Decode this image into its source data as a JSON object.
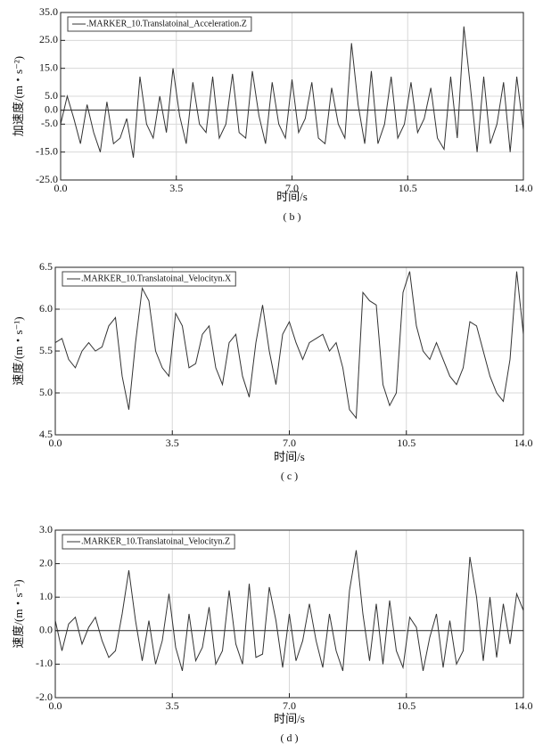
{
  "chart_data": [
    {
      "type": "line",
      "xlabel": "时间/s",
      "ylabel": "加速度/(m・s⁻²)",
      "caption": "( b )",
      "legend": "upper left",
      "grid": true,
      "xlim": [
        0,
        14
      ],
      "ylim": [
        -25,
        35
      ],
      "xticks": [
        {
          "value": 0,
          "label": "0.0"
        },
        {
          "value": 3.5,
          "label": "3.5"
        },
        {
          "value": 7,
          "label": "7.0"
        },
        {
          "value": 10.5,
          "label": "10.5"
        },
        {
          "value": 14,
          "label": "14.0"
        }
      ],
      "yticks": [
        {
          "value": -25,
          "label": "-25.0"
        },
        {
          "value": -15,
          "label": "-15.0"
        },
        {
          "value": -5,
          "label": "-5.0"
        },
        {
          "value": 0,
          "label": "0.0"
        },
        {
          "value": 5,
          "label": "5.0"
        },
        {
          "value": 15,
          "label": "15.0"
        },
        {
          "value": 25,
          "label": "25.0"
        },
        {
          "value": 35,
          "label": "35.0"
        }
      ],
      "x": [
        0,
        0.2,
        0.4,
        0.6,
        0.8,
        1,
        1.2,
        1.4,
        1.6,
        1.8,
        2,
        2.2,
        2.4,
        2.6,
        2.8,
        3,
        3.2,
        3.4,
        3.6,
        3.8,
        4,
        4.2,
        4.4,
        4.6,
        4.8,
        5,
        5.2,
        5.4,
        5.6,
        5.8,
        6,
        6.2,
        6.4,
        6.6,
        6.8,
        7,
        7.2,
        7.4,
        7.6,
        7.8,
        8,
        8.2,
        8.4,
        8.6,
        8.8,
        9,
        9.2,
        9.4,
        9.6,
        9.8,
        10,
        10.2,
        10.4,
        10.6,
        10.8,
        11,
        11.2,
        11.4,
        11.6,
        11.8,
        12,
        12.2,
        12.4,
        12.6,
        12.8,
        13,
        13.2,
        13.4,
        13.6,
        13.8,
        14
      ],
      "series": [
        {
          "name": ".MARKER_10.Translatoinal_Acceleration.Z",
          "color": "#333333",
          "values": [
            -5,
            5,
            -3,
            -12,
            2,
            -8,
            -15,
            3,
            -12,
            -10,
            -3,
            -17,
            12,
            -5,
            -10,
            5,
            -8,
            15,
            -2,
            -12,
            10,
            -5,
            -8,
            12,
            -10,
            -5,
            13,
            -8,
            -10,
            14,
            -2,
            -12,
            10,
            -5,
            -10,
            11,
            -8,
            -3,
            10,
            -10,
            -12,
            8,
            -5,
            -10,
            24,
            2,
            -12,
            14,
            -12,
            -5,
            12,
            -10,
            -5,
            10,
            -8,
            -3,
            8,
            -10,
            -14,
            12,
            -10,
            30,
            8,
            -15,
            12,
            -12,
            -5,
            10,
            -15,
            12,
            -7
          ]
        }
      ]
    },
    {
      "type": "line",
      "xlabel": "时间/s",
      "ylabel": "速度/(m・s⁻¹)",
      "caption": "( c )",
      "legend": "upper left",
      "grid": true,
      "xlim": [
        0,
        14
      ],
      "ylim": [
        4.5,
        6.5
      ],
      "xticks": [
        {
          "value": 0,
          "label": "0.0"
        },
        {
          "value": 3.5,
          "label": "3.5"
        },
        {
          "value": 7,
          "label": "7.0"
        },
        {
          "value": 10.5,
          "label": "10.5"
        },
        {
          "value": 14,
          "label": "14.0"
        }
      ],
      "yticks": [
        4.5,
        {
          "value": 5,
          "label": "5.0"
        },
        5.5,
        {
          "value": 6,
          "label": "6.0"
        },
        6.5
      ],
      "x": [
        0,
        0.2,
        0.4,
        0.6,
        0.8,
        1,
        1.2,
        1.4,
        1.6,
        1.8,
        2,
        2.2,
        2.4,
        2.6,
        2.8,
        3,
        3.2,
        3.4,
        3.6,
        3.8,
        4,
        4.2,
        4.4,
        4.6,
        4.8,
        5,
        5.2,
        5.4,
        5.6,
        5.8,
        6,
        6.2,
        6.4,
        6.6,
        6.8,
        7,
        7.2,
        7.4,
        7.6,
        7.8,
        8,
        8.2,
        8.4,
        8.6,
        8.8,
        9,
        9.2,
        9.4,
        9.6,
        9.8,
        10,
        10.2,
        10.4,
        10.6,
        10.8,
        11,
        11.2,
        11.4,
        11.6,
        11.8,
        12,
        12.2,
        12.4,
        12.6,
        12.8,
        13,
        13.2,
        13.4,
        13.6,
        13.8,
        14
      ],
      "series": [
        {
          "name": ".MARKER_10.Translatoinal_Velocityn.X",
          "color": "#333333",
          "values": [
            5.6,
            5.65,
            5.4,
            5.3,
            5.5,
            5.6,
            5.5,
            5.55,
            5.8,
            5.9,
            5.2,
            4.8,
            5.6,
            6.25,
            6.1,
            5.5,
            5.3,
            5.2,
            5.95,
            5.8,
            5.3,
            5.35,
            5.7,
            5.8,
            5.3,
            5.1,
            5.6,
            5.7,
            5.2,
            4.95,
            5.6,
            6.05,
            5.5,
            5.1,
            5.7,
            5.85,
            5.6,
            5.4,
            5.6,
            5.65,
            5.7,
            5.5,
            5.6,
            5.3,
            4.8,
            4.7,
            6.2,
            6.1,
            6.05,
            5.1,
            4.85,
            5.0,
            6.2,
            6.45,
            5.8,
            5.5,
            5.4,
            5.6,
            5.4,
            5.2,
            5.1,
            5.3,
            5.85,
            5.8,
            5.5,
            5.2,
            5.0,
            4.9,
            5.4,
            6.45,
            5.7
          ]
        }
      ]
    },
    {
      "type": "line",
      "xlabel": "时间/s",
      "ylabel": "速度/(m・s⁻¹)",
      "caption": "( d )",
      "legend": "upper left",
      "grid": true,
      "xlim": [
        0,
        14
      ],
      "ylim": [
        -2,
        3
      ],
      "xticks": [
        {
          "value": 0,
          "label": "0.0"
        },
        {
          "value": 3.5,
          "label": "3.5"
        },
        {
          "value": 7,
          "label": "7.0"
        },
        {
          "value": 10.5,
          "label": "10.5"
        },
        {
          "value": 14,
          "label": "14.0"
        }
      ],
      "yticks": [
        {
          "value": -2,
          "label": "-2.0"
        },
        {
          "value": -1,
          "label": "-1.0"
        },
        {
          "value": 0,
          "label": "0.0"
        },
        {
          "value": 1,
          "label": "1.0"
        },
        {
          "value": 2,
          "label": "2.0"
        },
        {
          "value": 3,
          "label": "3.0"
        }
      ],
      "x": [
        0,
        0.2,
        0.4,
        0.6,
        0.8,
        1,
        1.2,
        1.4,
        1.6,
        1.8,
        2,
        2.2,
        2.4,
        2.6,
        2.8,
        3,
        3.2,
        3.4,
        3.6,
        3.8,
        4,
        4.2,
        4.4,
        4.6,
        4.8,
        5,
        5.2,
        5.4,
        5.6,
        5.8,
        6,
        6.2,
        6.4,
        6.6,
        6.8,
        7,
        7.2,
        7.4,
        7.6,
        7.8,
        8,
        8.2,
        8.4,
        8.6,
        8.8,
        9,
        9.2,
        9.4,
        9.6,
        9.8,
        10,
        10.2,
        10.4,
        10.6,
        10.8,
        11,
        11.2,
        11.4,
        11.6,
        11.8,
        12,
        12.2,
        12.4,
        12.6,
        12.8,
        13,
        13.2,
        13.4,
        13.6,
        13.8,
        14
      ],
      "series": [
        {
          "name": ".MARKER_10.Translatoinal_Velocityn.Z",
          "color": "#333333",
          "values": [
            0.3,
            -0.6,
            0.2,
            0.4,
            -0.4,
            0.1,
            0.4,
            -0.3,
            -0.8,
            -0.6,
            0.5,
            1.8,
            0.3,
            -0.9,
            0.3,
            -1.0,
            -0.3,
            1.1,
            -0.5,
            -1.2,
            0.5,
            -0.9,
            -0.5,
            0.7,
            -1.0,
            -0.6,
            1.2,
            -0.4,
            -1.0,
            1.4,
            -0.8,
            -0.7,
            1.3,
            0.3,
            -1.1,
            0.5,
            -0.9,
            -0.3,
            0.8,
            -0.3,
            -1.1,
            0.5,
            -0.6,
            -1.2,
            1.2,
            2.4,
            0.5,
            -0.9,
            0.8,
            -1.0,
            0.9,
            -0.6,
            -1.1,
            0.4,
            0.1,
            -1.2,
            -0.2,
            0.5,
            -1.1,
            0.3,
            -1.0,
            -0.6,
            2.2,
            1.0,
            -0.9,
            1.0,
            -0.8,
            0.8,
            -0.4,
            1.1,
            0.6
          ]
        }
      ]
    }
  ]
}
